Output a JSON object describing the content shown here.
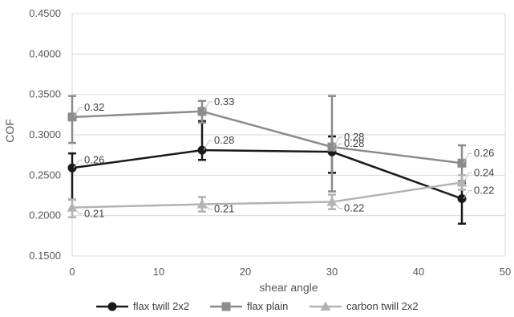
{
  "chart_data": {
    "type": "line",
    "xlabel": "shear angle",
    "ylabel": "COF",
    "xlim": [
      0,
      50
    ],
    "ylim": [
      0.15,
      0.45
    ],
    "xticks": [
      0,
      10,
      20,
      30,
      40,
      50
    ],
    "yticks": [
      0.15,
      0.2,
      0.25,
      0.3,
      0.35,
      0.4,
      0.45
    ],
    "xtick_labels": [
      "0",
      "10",
      "20",
      "30",
      "40",
      "50"
    ],
    "ytick_labels": [
      "0.1500",
      "0.2000",
      "0.2500",
      "0.3000",
      "0.3500",
      "0.4000",
      "0.4500"
    ],
    "grid": "horizontal",
    "legend_position": "bottom",
    "series": [
      {
        "name": "flax twill 2x2",
        "color": "#1a1a1a",
        "marker": "circle",
        "x": [
          0,
          15,
          30,
          45
        ],
        "y": [
          0.259,
          0.281,
          0.279,
          0.221
        ],
        "err_low": [
          0.22,
          0.269,
          0.253,
          0.19
        ],
        "err_high": [
          0.277,
          0.317,
          0.298,
          0.24
        ],
        "labels": [
          "0.26",
          "0.28",
          "0.28",
          "0.22"
        ]
      },
      {
        "name": "flax plain",
        "color": "#8c8c8c",
        "marker": "square",
        "x": [
          0,
          15,
          30,
          45
        ],
        "y": [
          0.322,
          0.329,
          0.285,
          0.265
        ],
        "err_low": [
          0.29,
          0.315,
          0.23,
          0.243
        ],
        "err_high": [
          0.348,
          0.342,
          0.348,
          0.287
        ],
        "labels": [
          "0.32",
          "0.33",
          "0.28",
          "0.26"
        ]
      },
      {
        "name": "carbon twill 2x2",
        "color": "#b3b3b3",
        "marker": "triangle",
        "x": [
          0,
          15,
          30,
          45
        ],
        "y": [
          0.21,
          0.214,
          0.217,
          0.241
        ],
        "err_low": [
          0.198,
          0.205,
          0.208,
          0.232
        ],
        "err_high": [
          0.22,
          0.223,
          0.226,
          0.25
        ],
        "labels": [
          "0.21",
          "0.21",
          "0.22",
          "0.24"
        ]
      }
    ]
  }
}
